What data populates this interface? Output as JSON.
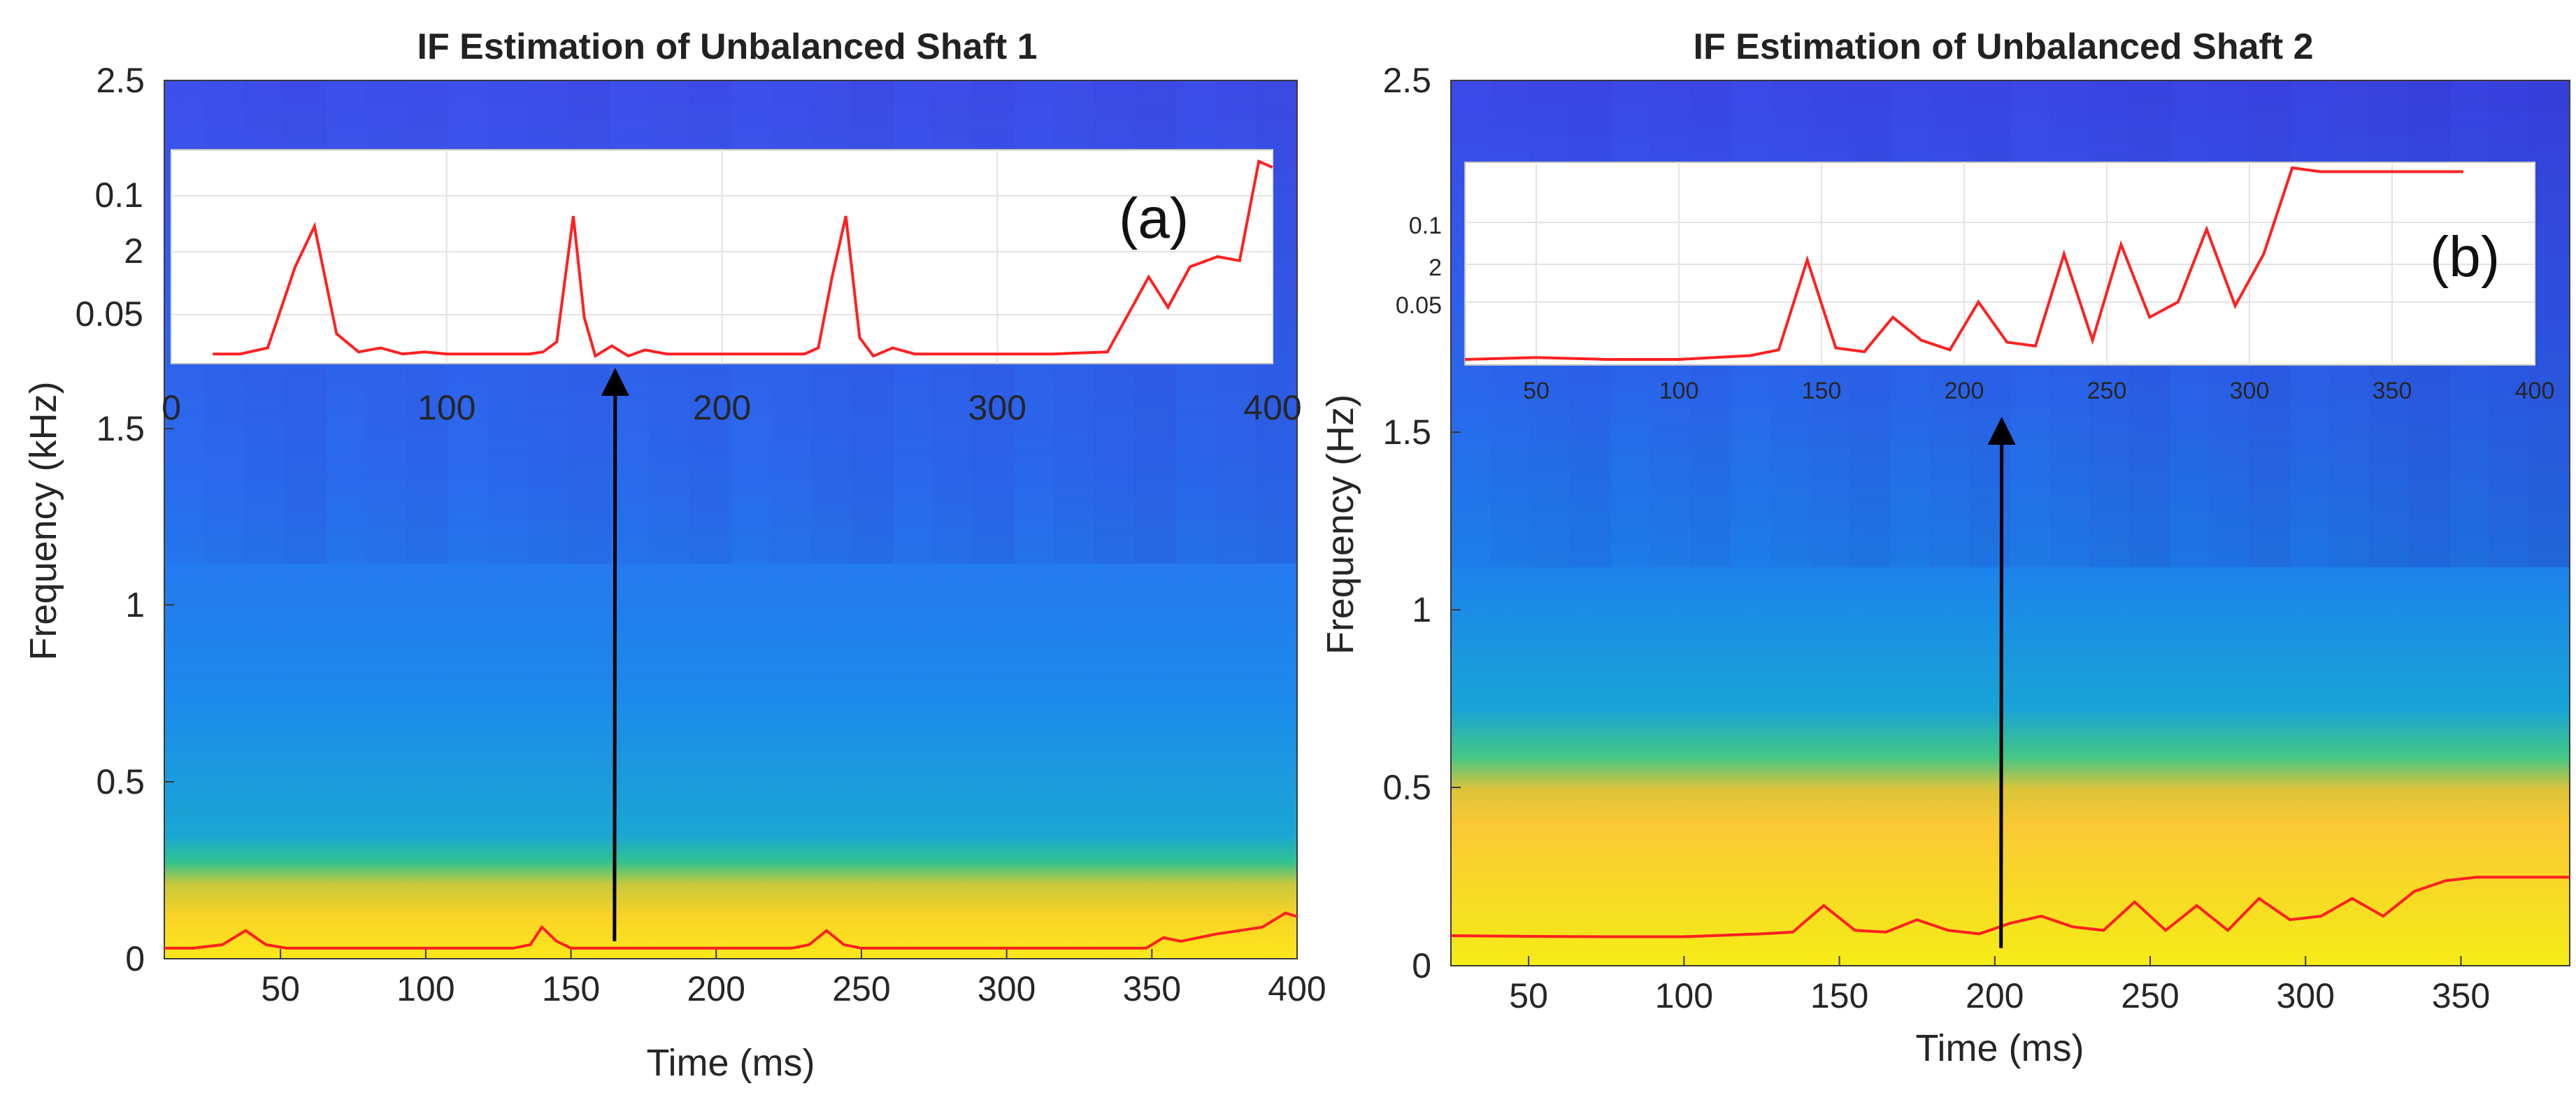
{
  "chart_data": [
    {
      "type": "heatmap",
      "panel": "a",
      "title": "IF Estimation of Unbalanced Shaft 1",
      "xlabel": "Time (ms)",
      "ylabel": "Frequency (kHz)",
      "xlim": [
        10,
        400
      ],
      "ylim": [
        0,
        2.5
      ],
      "xticks": [
        50,
        100,
        150,
        200,
        250,
        300,
        350,
        400
      ],
      "yticks": [
        0,
        0.5,
        1,
        1.5,
        2.5
      ],
      "yticklabels": [
        "0",
        "0.5",
        "1",
        "1.5",
        "2.5"
      ],
      "colors": {
        "low": "#3d2fd6",
        "mid": "#18a0e0",
        "green": "#2fc88a",
        "high": "#f7ea14",
        "line": "#ff2020"
      },
      "background_bands": [
        {
          "from_khz": 0.0,
          "to_khz": 0.18,
          "level": "high"
        },
        {
          "from_khz": 0.18,
          "to_khz": 0.35,
          "level": "transition"
        },
        {
          "from_khz": 0.35,
          "to_khz": 2.5,
          "level": "mid"
        }
      ],
      "if_curve": {
        "time_ms": [
          10,
          20,
          30,
          38,
          45,
          52,
          60,
          68,
          76,
          84,
          92,
          100,
          108,
          116,
          124,
          130,
          136,
          140,
          145,
          150,
          156,
          162,
          170,
          178,
          186,
          194,
          202,
          210,
          218,
          226,
          232,
          238,
          244,
          250,
          256,
          262,
          268,
          276,
          284,
          292,
          300,
          310,
          320,
          330,
          340,
          348,
          354,
          360,
          366,
          372,
          380,
          388,
          396,
          400
        ],
        "freq_khz": [
          0.03,
          0.03,
          0.04,
          0.08,
          0.04,
          0.03,
          0.03,
          0.03,
          0.03,
          0.03,
          0.03,
          0.03,
          0.03,
          0.03,
          0.03,
          0.03,
          0.04,
          0.09,
          0.05,
          0.03,
          0.03,
          0.03,
          0.03,
          0.03,
          0.03,
          0.03,
          0.03,
          0.03,
          0.03,
          0.03,
          0.04,
          0.08,
          0.04,
          0.03,
          0.03,
          0.03,
          0.03,
          0.03,
          0.03,
          0.03,
          0.03,
          0.03,
          0.03,
          0.03,
          0.03,
          0.03,
          0.06,
          0.05,
          0.06,
          0.07,
          0.08,
          0.09,
          0.13,
          0.12
        ]
      },
      "inset": {
        "xlim": [
          0,
          400
        ],
        "xticks": [
          0,
          100,
          200,
          300,
          400
        ],
        "yticklabels": [
          "0.1",
          "2",
          "0.05"
        ],
        "label": "(a)",
        "time_ms": [
          15,
          25,
          35,
          45,
          52,
          60,
          68,
          76,
          84,
          92,
          100,
          110,
          120,
          130,
          135,
          140,
          146,
          150,
          154,
          160,
          166,
          172,
          180,
          190,
          200,
          210,
          220,
          230,
          235,
          240,
          245,
          250,
          255,
          262,
          270,
          280,
          300,
          320,
          340,
          355,
          362,
          370,
          380,
          388,
          395,
          400
        ],
        "level": [
          0.02,
          0.02,
          0.05,
          0.45,
          0.65,
          0.12,
          0.03,
          0.05,
          0.02,
          0.03,
          0.02,
          0.02,
          0.02,
          0.02,
          0.03,
          0.08,
          0.7,
          0.2,
          0.01,
          0.06,
          0.01,
          0.04,
          0.02,
          0.02,
          0.02,
          0.02,
          0.02,
          0.02,
          0.05,
          0.4,
          0.7,
          0.1,
          0.01,
          0.05,
          0.02,
          0.02,
          0.02,
          0.02,
          0.03,
          0.4,
          0.25,
          0.45,
          0.5,
          0.48,
          0.97,
          0.94
        ]
      },
      "annotations": [
        {
          "type": "arrow",
          "at_time_ms": 165,
          "text": ""
        }
      ]
    },
    {
      "type": "heatmap",
      "panel": "b",
      "title": "IF Estimation of Unbalanced Shaft 2",
      "xlabel": "Time (ms)",
      "ylabel": "Frequency (Hz)",
      "xlim": [
        25,
        385
      ],
      "ylim": [
        0,
        2.5
      ],
      "xticks": [
        50,
        100,
        150,
        200,
        250,
        300,
        350
      ],
      "yticks": [
        0,
        0.5,
        1,
        1.5,
        2.5
      ],
      "yticklabels": [
        "0",
        "0.5",
        "1",
        "1.5",
        "2.5"
      ],
      "colors": {
        "low": "#3d2fd6",
        "mid": "#18a0e0",
        "green": "#2fc88a",
        "high": "#f7ea14",
        "line": "#ff2020"
      },
      "background_bands": [
        {
          "from_khz": 0.0,
          "to_khz": 0.5,
          "level": "high"
        },
        {
          "from_khz": 0.5,
          "to_khz": 0.72,
          "level": "transition"
        },
        {
          "from_khz": 0.72,
          "to_khz": 2.5,
          "level": "mid"
        }
      ],
      "if_curve": {
        "time_ms": [
          25,
          50,
          75,
          100,
          125,
          135,
          145,
          155,
          165,
          175,
          185,
          195,
          205,
          215,
          225,
          235,
          245,
          255,
          265,
          275,
          285,
          295,
          305,
          315,
          325,
          335,
          345,
          355,
          365,
          375,
          385
        ],
        "freq_khz": [
          0.085,
          0.083,
          0.082,
          0.082,
          0.09,
          0.095,
          0.17,
          0.1,
          0.095,
          0.13,
          0.1,
          0.09,
          0.12,
          0.14,
          0.11,
          0.1,
          0.18,
          0.1,
          0.17,
          0.1,
          0.19,
          0.13,
          0.14,
          0.19,
          0.14,
          0.21,
          0.24,
          0.25,
          0.25,
          0.25,
          0.25
        ]
      },
      "inset": {
        "xlim": [
          25,
          400
        ],
        "xticks": [
          50,
          100,
          150,
          200,
          250,
          300,
          350,
          400
        ],
        "yticklabels": [
          "0.1",
          "2",
          "0.05"
        ],
        "label": "(b)",
        "time_ms": [
          25,
          50,
          75,
          100,
          125,
          135,
          145,
          155,
          165,
          175,
          185,
          195,
          205,
          215,
          225,
          235,
          245,
          255,
          265,
          275,
          285,
          295,
          305,
          315,
          325,
          335,
          345,
          355,
          365,
          375
        ],
        "level": [
          0.0,
          0.01,
          0.0,
          0.0,
          0.02,
          0.05,
          0.52,
          0.06,
          0.04,
          0.22,
          0.1,
          0.05,
          0.3,
          0.09,
          0.07,
          0.55,
          0.1,
          0.6,
          0.22,
          0.3,
          0.68,
          0.28,
          0.55,
          1.0,
          0.98,
          0.98,
          0.98,
          0.98,
          0.98,
          0.98
        ]
      },
      "annotations": [
        {
          "type": "arrow",
          "at_time_ms": 202,
          "text": ""
        }
      ]
    }
  ]
}
